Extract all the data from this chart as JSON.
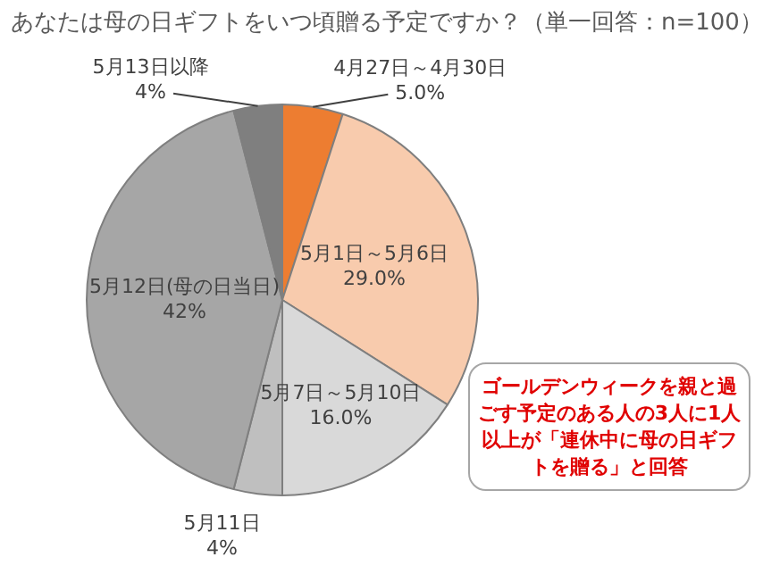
{
  "chart_data": {
    "type": "pie",
    "title": "あなたは母の日ギフトをいつ頃贈る予定ですか？（単一回答：n=100）",
    "categories": [
      "4月27日～4月30日",
      "5月1日～5月6日",
      "5月7日～5月10日",
      "5月11日",
      "5月12日(母の日当日)",
      "5月13日以降"
    ],
    "values": [
      5.0,
      29.0,
      16.0,
      4,
      42,
      4
    ],
    "value_labels": [
      "5.0%",
      "29.0%",
      "16.0%",
      "4%",
      "42%",
      "4%"
    ],
    "colors": [
      "#ed7d31",
      "#f8cbad",
      "#d9d9d9",
      "#bfbfbf",
      "#a6a6a6",
      "#7f7f7f"
    ],
    "annotations": [
      "ゴールデンウィークを親と過ごす予定のある人の3人に1人以上が「連休中に母の日ギフトを贈る」と回答"
    ],
    "legend": false
  }
}
